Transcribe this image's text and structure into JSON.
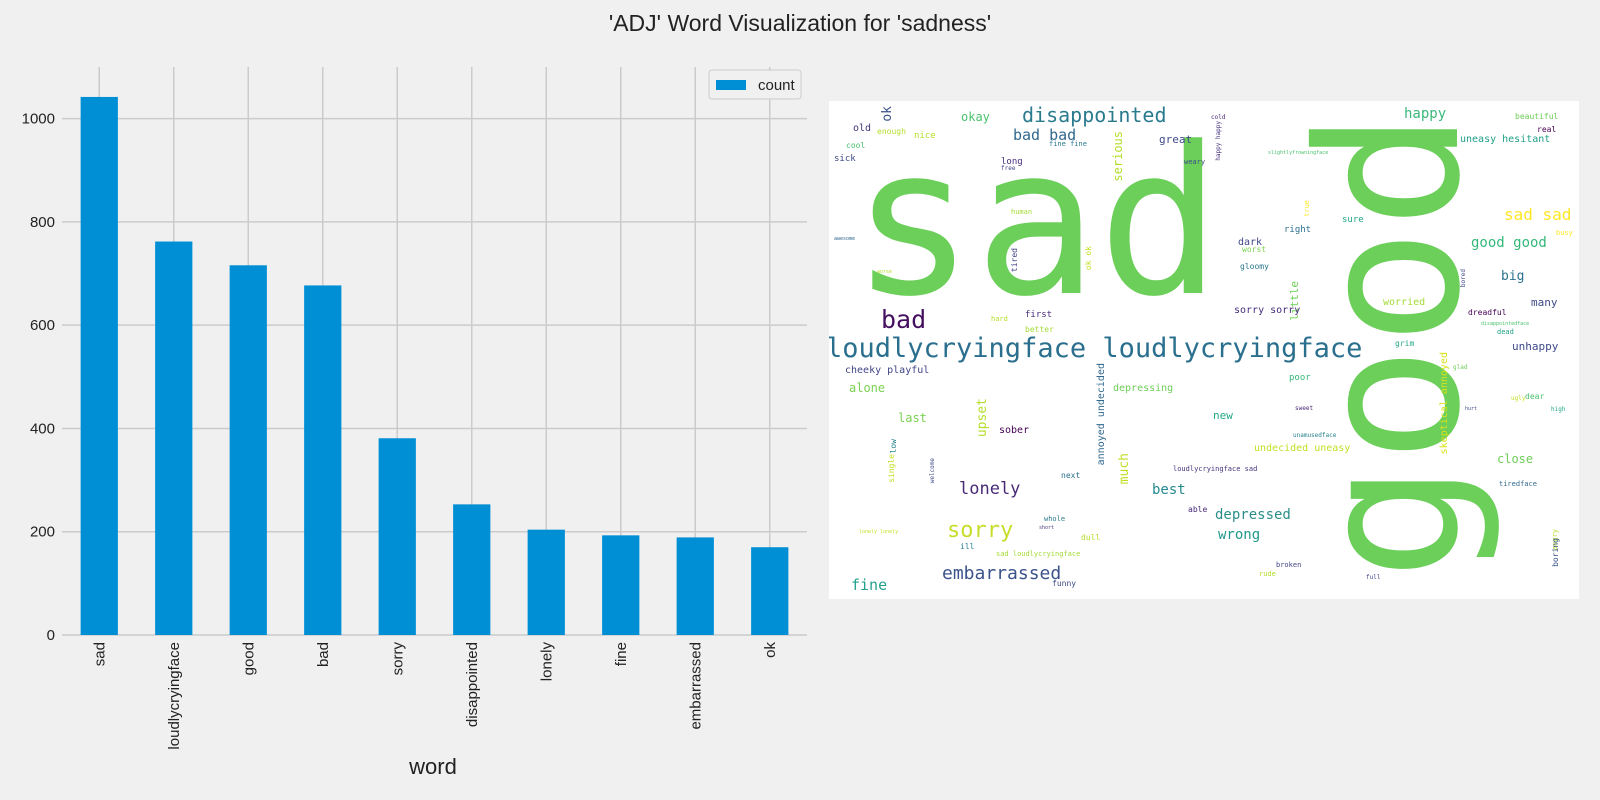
{
  "title": "'ADJ' Word Visualization for 'sadness'",
  "chart_data": {
    "type": "bar",
    "categories": [
      "sad",
      "loudlycryingface",
      "good",
      "bad",
      "sorry",
      "disappointed",
      "lonely",
      "fine",
      "embarrassed",
      "ok"
    ],
    "series": [
      {
        "name": "count",
        "values": [
          1042,
          762,
          716,
          677,
          381,
          253,
          204,
          193,
          189,
          170
        ],
        "color": "#008fd5"
      }
    ],
    "xlabel": "word",
    "ylabel": "",
    "ylim": [
      0,
      1100
    ],
    "yticks": [
      0,
      200,
      400,
      600,
      800,
      1000
    ],
    "grid": true,
    "legend": "top-right"
  },
  "wordcloud": {
    "palette": "viridis",
    "words": [
      {
        "text": "sad",
        "color": "#6ccf5a"
      },
      {
        "text": "good",
        "color": "#6ccf5a",
        "vertical": true
      },
      {
        "text": "loudlycryingface loudlycryingface",
        "color": "#2a6f8e"
      },
      {
        "text": "disappointed",
        "color": "#2a7b8e"
      },
      {
        "text": "bad",
        "color": "#440f5e"
      },
      {
        "text": "sorry",
        "color": "#c8dd2a"
      },
      {
        "text": "embarrassed",
        "color": "#3b528b"
      },
      {
        "text": "lonely",
        "color": "#482a76"
      },
      {
        "text": "bad bad",
        "color": "#31688e"
      },
      {
        "text": "sad sad",
        "color": "#fde725"
      },
      {
        "text": "good good",
        "color": "#35b779"
      },
      {
        "text": "fine",
        "color": "#25a18e"
      },
      {
        "text": "depressed",
        "color": "#2a8f88"
      },
      {
        "text": "wrong",
        "color": "#1f9a8a"
      },
      {
        "text": "happy",
        "color": "#3bb87a"
      },
      {
        "text": "best",
        "color": "#23898e"
      },
      {
        "text": "big",
        "color": "#2c728e"
      },
      {
        "text": "alone",
        "color": "#7ad151"
      },
      {
        "text": "great",
        "color": "#3e4a89"
      },
      {
        "text": "ok",
        "color": "#3b528b",
        "vertical": true
      },
      {
        "text": "okay",
        "color": "#4ac16d"
      },
      {
        "text": "upset",
        "color": "#b5de2b",
        "vertical": true
      },
      {
        "text": "much",
        "color": "#c0df25",
        "vertical": true
      },
      {
        "text": "serious",
        "color": "#b5de2b",
        "vertical": true
      },
      {
        "text": "little",
        "color": "#6ece58",
        "vertical": true
      },
      {
        "text": "last",
        "color": "#7ad151"
      },
      {
        "text": "new",
        "color": "#22a785"
      },
      {
        "text": "close",
        "color": "#6ece58"
      },
      {
        "text": "unhappy",
        "color": "#3e4a89"
      },
      {
        "text": "many",
        "color": "#3e4a89"
      },
      {
        "text": "cheeky playful",
        "color": "#414487"
      },
      {
        "text": "depressing",
        "color": "#6ece58"
      },
      {
        "text": "sober",
        "color": "#440154"
      },
      {
        "text": "undecided uneasy",
        "color": "#c2df23"
      },
      {
        "text": "uneasy hesitant",
        "color": "#1fa187"
      },
      {
        "text": "annoyed undecided",
        "color": "#31688e",
        "vertical": true
      },
      {
        "text": "skeptical annoyed",
        "color": "#d8e219",
        "vertical": true
      },
      {
        "text": "sorry sorry",
        "color": "#472d7b"
      },
      {
        "text": "dark",
        "color": "#404688"
      },
      {
        "text": "worried",
        "color": "#a5db36"
      },
      {
        "text": "old",
        "color": "#46337e"
      },
      {
        "text": "nice",
        "color": "#b5de2b"
      },
      {
        "text": "cool",
        "color": "#4ac16d"
      },
      {
        "text": "sick",
        "color": "#3e4a89"
      },
      {
        "text": "enough",
        "color": "#b5de2b"
      },
      {
        "text": "long",
        "color": "#472d7b"
      },
      {
        "text": "free",
        "color": "#414487"
      },
      {
        "text": "first",
        "color": "#472d7b"
      },
      {
        "text": "better",
        "color": "#a5db36"
      },
      {
        "text": "hard",
        "color": "#b5de2b"
      },
      {
        "text": "worse",
        "color": "#b5de2b"
      },
      {
        "text": "awesome",
        "color": "#31688e"
      },
      {
        "text": "human",
        "color": "#a5db36"
      },
      {
        "text": "worst",
        "color": "#7ad151"
      },
      {
        "text": "gloomy",
        "color": "#2a788e"
      },
      {
        "text": "tired",
        "color": "#414487",
        "vertical": true
      },
      {
        "text": "ok ok",
        "color": "#c2df23",
        "vertical": true
      },
      {
        "text": "right",
        "color": "#2c728e"
      },
      {
        "text": "sure",
        "color": "#22a785"
      },
      {
        "text": "true",
        "color": "#fde725",
        "vertical": true
      },
      {
        "text": "weary",
        "color": "#3e4a89"
      },
      {
        "text": "cold",
        "color": "#482878"
      },
      {
        "text": "happy happy",
        "color": "#46337e",
        "vertical": true
      },
      {
        "text": "slightlyfrowningface",
        "color": "#4ac16d"
      },
      {
        "text": "fine fine",
        "color": "#2a788e"
      },
      {
        "text": "beautiful",
        "color": "#6ece58"
      },
      {
        "text": "real",
        "color": "#440154"
      },
      {
        "text": "busy",
        "color": "#fde725"
      },
      {
        "text": "bored",
        "color": "#3e4a89",
        "vertical": true
      },
      {
        "text": "dreadful",
        "color": "#440154"
      },
      {
        "text": "disappointedface",
        "color": "#4ac16d"
      },
      {
        "text": "dead",
        "color": "#1fa187"
      },
      {
        "text": "grim",
        "color": "#22a785"
      },
      {
        "text": "glad",
        "color": "#6ece58"
      },
      {
        "text": "poor",
        "color": "#35b779"
      },
      {
        "text": "sweet",
        "color": "#482878"
      },
      {
        "text": "unamusedface",
        "color": "#26828e"
      },
      {
        "text": "hurt",
        "color": "#3e4a89"
      },
      {
        "text": "ugly",
        "color": "#c2df23"
      },
      {
        "text": "dear",
        "color": "#4ac16d"
      },
      {
        "text": "high",
        "color": "#22a785"
      },
      {
        "text": "tiredface",
        "color": "#31688e"
      },
      {
        "text": "angry",
        "color": "#b5de2b",
        "vertical": true
      },
      {
        "text": "boring",
        "color": "#3b528b",
        "vertical": true
      },
      {
        "text": "full",
        "color": "#414487"
      },
      {
        "text": "low",
        "color": "#26828e",
        "vertical": true
      },
      {
        "text": "single",
        "color": "#c2df23",
        "vertical": true
      },
      {
        "text": "welcome",
        "color": "#3e4a89",
        "vertical": true
      },
      {
        "text": "next",
        "color": "#2c728e"
      },
      {
        "text": "loudlycryingface sad",
        "color": "#46337e"
      },
      {
        "text": "whole",
        "color": "#2a788e"
      },
      {
        "text": "short",
        "color": "#46337e"
      },
      {
        "text": "able",
        "color": "#482878"
      },
      {
        "text": "dull",
        "color": "#b5de2b"
      },
      {
        "text": "lonely lonely",
        "color": "#c2df23"
      },
      {
        "text": "ill",
        "color": "#26828e"
      },
      {
        "text": "sad loudlycryingface",
        "color": "#a5db36"
      },
      {
        "text": "broken",
        "color": "#414487"
      },
      {
        "text": "rude",
        "color": "#b5de2b"
      },
      {
        "text": "funny",
        "color": "#3e4a89"
      }
    ]
  }
}
